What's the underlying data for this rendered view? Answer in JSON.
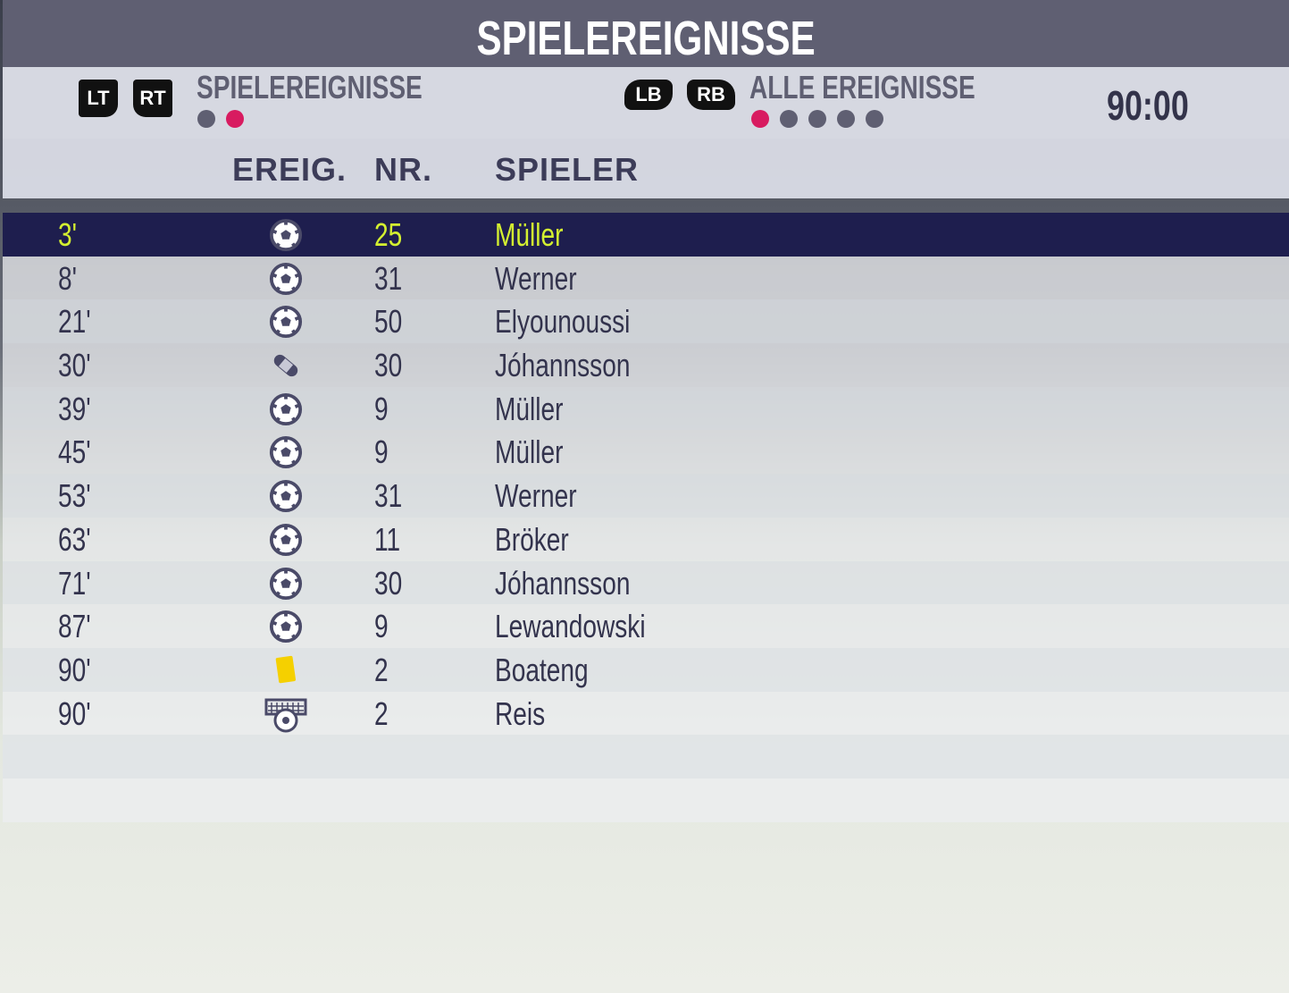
{
  "header": {
    "title": "SPIELEREIGNISSE"
  },
  "subbar": {
    "left_buttons": [
      "LT",
      "RT"
    ],
    "left_label": "SPIELEREIGNISSE",
    "left_pages": 2,
    "left_active": 2,
    "right_buttons": [
      "LB",
      "RB"
    ],
    "right_label": "ALLE EREIGNISSE",
    "right_pages": 5,
    "right_active": 1,
    "clock": "90:00"
  },
  "columns": {
    "event": "EREIG.",
    "number": "NR.",
    "player": "SPIELER"
  },
  "colors": {
    "accent": "#d81b60",
    "selected_row": "#1e1e4e",
    "selected_text": "#d4f030"
  },
  "events": [
    {
      "minute": "3'",
      "icon": "goal-ball-icon",
      "number": "25",
      "player": "Müller",
      "selected": true
    },
    {
      "minute": "8'",
      "icon": "goal-ball-icon",
      "number": "31",
      "player": "Werner"
    },
    {
      "minute": "21'",
      "icon": "goal-ball-icon",
      "number": "50",
      "player": "Elyounoussi"
    },
    {
      "minute": "30'",
      "icon": "injury-bandage-icon",
      "number": "30",
      "player": "Jóhannsson"
    },
    {
      "minute": "39'",
      "icon": "goal-ball-icon",
      "number": "9",
      "player": "Müller"
    },
    {
      "minute": "45'",
      "icon": "goal-ball-icon",
      "number": "9",
      "player": "Müller"
    },
    {
      "minute": "53'",
      "icon": "goal-ball-icon",
      "number": "31",
      "player": "Werner"
    },
    {
      "minute": "63'",
      "icon": "goal-ball-icon",
      "number": "11",
      "player": "Bröker"
    },
    {
      "minute": "71'",
      "icon": "goal-ball-icon",
      "number": "30",
      "player": "Jóhannsson"
    },
    {
      "minute": "87'",
      "icon": "goal-ball-icon",
      "number": "9",
      "player": "Lewandowski"
    },
    {
      "minute": "90'",
      "icon": "yellow-card-icon",
      "number": "2",
      "player": "Boateng"
    },
    {
      "minute": "90'",
      "icon": "penalty-goal-icon",
      "number": "2",
      "player": "Reis"
    }
  ]
}
